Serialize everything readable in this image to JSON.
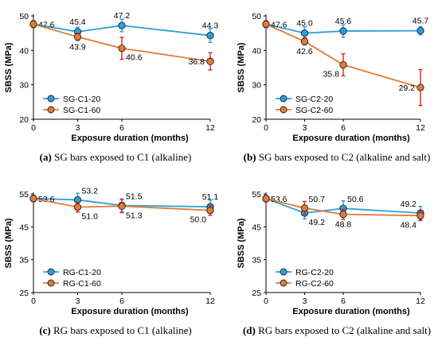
{
  "colors": {
    "series_blue": "#2e9fd8",
    "series_orange": "#e07b39",
    "error_blue": "#2e9fd8",
    "error_red": "#e0241b"
  },
  "chart_data": [
    {
      "type": "line",
      "caption_bold": "(a)",
      "caption_rest": " SG bars exposed to C1 (alkaline)",
      "xlabel": "Exposure duration (months)",
      "ylabel": "SBSS (MPa)",
      "x": [
        0,
        3,
        6,
        12
      ],
      "xlim": [
        0,
        12
      ],
      "ylim": [
        20,
        50
      ],
      "yticks": [
        20,
        30,
        40,
        50
      ],
      "legend_position": "bottom-left",
      "series": [
        {
          "name": "SG-C1-20",
          "color": "#2e9fd8",
          "values": [
            47.6,
            45.4,
            47.2,
            44.3
          ],
          "err": [
            1.0,
            1.3,
            1.8,
            2.0
          ],
          "err_color": "#2e9fd8",
          "labels": [
            "47.6",
            "45.4",
            "47.2",
            "44.3"
          ],
          "label_pos": [
            "right",
            "above",
            "above",
            "above"
          ]
        },
        {
          "name": "SG-C1-60",
          "color": "#e07b39",
          "values": [
            47.6,
            43.9,
            40.6,
            36.8
          ],
          "err": [
            1.0,
            1.0,
            3.2,
            2.5
          ],
          "err_color": "#e0241b",
          "labels": [
            "",
            "43.9",
            "40.6",
            "36.8"
          ],
          "label_pos": [
            "none",
            "below",
            "below-right",
            "left"
          ]
        }
      ]
    },
    {
      "type": "line",
      "caption_bold": "(b)",
      "caption_rest": " SG bars exposed to C2 (alkaline and salt)",
      "xlabel": "Exposure duration (months)",
      "ylabel": "SBSS (MPa)",
      "x": [
        0,
        3,
        6,
        12
      ],
      "xlim": [
        0,
        12
      ],
      "ylim": [
        20,
        50
      ],
      "yticks": [
        20,
        30,
        40,
        50
      ],
      "legend_position": "bottom-left",
      "series": [
        {
          "name": "SG-C2-20",
          "color": "#2e9fd8",
          "values": [
            47.6,
            45.0,
            45.6,
            45.7
          ],
          "err": [
            1.0,
            1.8,
            1.8,
            1.2
          ],
          "err_color": "#2e9fd8",
          "labels": [
            "47.6",
            "45.0",
            "45.6",
            "45.7"
          ],
          "label_pos": [
            "right",
            "above",
            "above",
            "above"
          ]
        },
        {
          "name": "SG-C2-60",
          "color": "#e07b39",
          "values": [
            47.6,
            42.6,
            35.8,
            29.2
          ],
          "err": [
            1.0,
            1.0,
            3.2,
            5.2
          ],
          "err_color": "#e0241b",
          "labels": [
            "",
            "42.6",
            "35.8",
            "29.2"
          ],
          "label_pos": [
            "none",
            "below",
            "below-left",
            "left"
          ]
        }
      ]
    },
    {
      "type": "line",
      "caption_bold": "(c)",
      "caption_rest": " RG bars exposed to C1 (alkaline)",
      "xlabel": "Exposure duration (months)",
      "ylabel": "SBSS (MPa)",
      "x": [
        0,
        3,
        6,
        12
      ],
      "xlim": [
        0,
        12
      ],
      "ylim": [
        25,
        55
      ],
      "yticks": [
        25,
        35,
        45,
        55
      ],
      "legend_position": "bottom-left",
      "series": [
        {
          "name": "RG-C1-20",
          "color": "#2e9fd8",
          "values": [
            53.6,
            53.2,
            51.5,
            51.1
          ],
          "err": [
            1.0,
            2.0,
            2.0,
            2.0
          ],
          "err_color": "#2e9fd8",
          "labels": [
            "53.6",
            "53.2",
            "51.5",
            "51.1"
          ],
          "label_pos": [
            "right",
            "above-right",
            "above-right",
            "above"
          ]
        },
        {
          "name": "RG-C1-60",
          "color": "#e07b39",
          "values": [
            53.6,
            51.0,
            51.3,
            50.0
          ],
          "err": [
            1.0,
            1.5,
            2.0,
            1.5
          ],
          "err_color": "#e0241b",
          "labels": [
            "",
            "51.0",
            "51.3",
            "50.0"
          ],
          "label_pos": [
            "none",
            "below-right",
            "below-right",
            "below-left"
          ]
        }
      ]
    },
    {
      "type": "line",
      "caption_bold": "(d)",
      "caption_rest": " RG bars exposed to C2 (alkaline and salt)",
      "xlabel": "Exposure duration (months)",
      "ylabel": "SBSS (MPa)",
      "x": [
        0,
        3,
        6,
        12
      ],
      "xlim": [
        0,
        12
      ],
      "ylim": [
        25,
        55
      ],
      "yticks": [
        25,
        35,
        45,
        55
      ],
      "legend_position": "bottom-left",
      "series": [
        {
          "name": "RG-C2-20",
          "color": "#2e9fd8",
          "values": [
            53.6,
            49.2,
            50.6,
            49.2
          ],
          "err": [
            1.0,
            1.8,
            2.3,
            2.0
          ],
          "err_color": "#2e9fd8",
          "labels": [
            "53.6",
            "49.2",
            "50.6",
            "49.2"
          ],
          "label_pos": [
            "right",
            "below-right",
            "above-right",
            "above-left"
          ]
        },
        {
          "name": "RG-C2-60",
          "color": "#e07b39",
          "values": [
            53.6,
            50.7,
            48.8,
            48.4
          ],
          "err": [
            1.0,
            2.0,
            1.5,
            1.5
          ],
          "err_color": "#e0241b",
          "labels": [
            "",
            "50.7",
            "48.8",
            "48.4"
          ],
          "label_pos": [
            "none",
            "above-right",
            "below",
            "below-left"
          ]
        }
      ]
    }
  ]
}
